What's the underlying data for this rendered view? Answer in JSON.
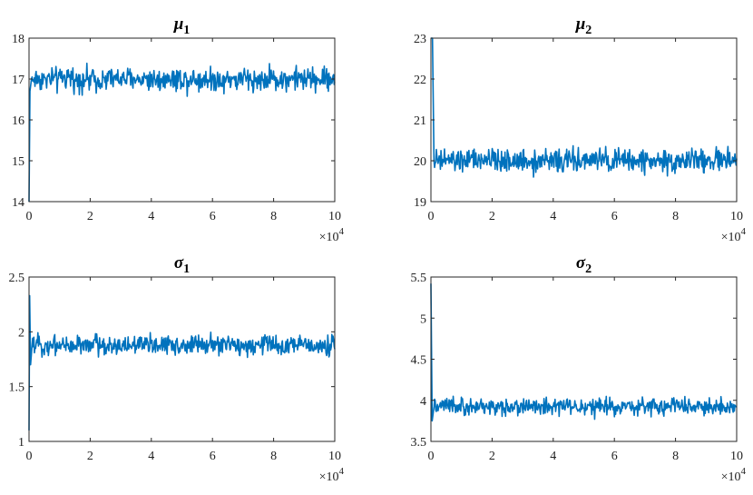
{
  "figure": {
    "series_color": "#0072BD",
    "axis_color": "#262626",
    "background": "#ffffff"
  },
  "chart_data": [
    {
      "type": "line",
      "title": "μ",
      "title_sub": "1",
      "x_multiplier_base": "×10",
      "x_multiplier_exp": "4",
      "xlim": [
        0,
        10
      ],
      "ylim": [
        14,
        18
      ],
      "xticks": [
        0,
        2,
        4,
        6,
        8,
        10
      ],
      "yticks": [
        14,
        15,
        16,
        17,
        18
      ],
      "grid": false,
      "series": [
        {
          "burn_in": [
            [
              0,
              14.0
            ],
            [
              0.03,
              16.7
            ],
            [
              0.08,
              17.0
            ]
          ],
          "equilibrium_mean": 17.0,
          "band_low": 16.6,
          "band_high": 17.45,
          "x_end": 10
        }
      ]
    },
    {
      "type": "line",
      "title": "μ",
      "title_sub": "2",
      "x_multiplier_base": "×10",
      "x_multiplier_exp": "4",
      "xlim": [
        0,
        10
      ],
      "ylim": [
        19,
        23
      ],
      "xticks": [
        0,
        2,
        4,
        6,
        8,
        10
      ],
      "yticks": [
        19,
        20,
        21,
        22,
        23
      ],
      "grid": false,
      "series": [
        {
          "burn_in": [
            [
              0,
              23.0
            ],
            [
              0.05,
              23.0
            ],
            [
              0.1,
              20.0
            ]
          ],
          "equilibrium_mean": 20.0,
          "band_low": 19.6,
          "band_high": 20.45,
          "x_end": 10
        }
      ]
    },
    {
      "type": "line",
      "title": "σ",
      "title_sub": "1",
      "x_multiplier_base": "×10",
      "x_multiplier_exp": "4",
      "xlim": [
        0,
        10
      ],
      "ylim": [
        1,
        2.5
      ],
      "xticks": [
        0,
        2,
        4,
        6,
        8,
        10
      ],
      "yticks": [
        1,
        1.5,
        2,
        2.5
      ],
      "ytick_labels": [
        "1",
        "1.5",
        "2",
        "2.5"
      ],
      "grid": false,
      "series": [
        {
          "burn_in": [
            [
              0,
              1.1
            ],
            [
              0.02,
              2.33
            ],
            [
              0.05,
              1.7
            ],
            [
              0.1,
              1.88
            ]
          ],
          "equilibrium_mean": 1.88,
          "band_low": 1.75,
          "band_high": 2.02,
          "x_end": 10
        }
      ]
    },
    {
      "type": "line",
      "title": "σ",
      "title_sub": "2",
      "x_multiplier_base": "×10",
      "x_multiplier_exp": "4",
      "xlim": [
        0,
        10
      ],
      "ylim": [
        3.5,
        5.5
      ],
      "xticks": [
        0,
        2,
        4,
        6,
        8,
        10
      ],
      "yticks": [
        3.5,
        4,
        4.5,
        5,
        5.5
      ],
      "ytick_labels": [
        "3.5",
        "4",
        "4.5",
        "5",
        "5.5"
      ],
      "grid": false,
      "series": [
        {
          "burn_in": [
            [
              0,
              5.42
            ],
            [
              0.04,
              3.75
            ],
            [
              0.1,
              3.92
            ]
          ],
          "equilibrium_mean": 3.92,
          "band_low": 3.78,
          "band_high": 4.08,
          "x_end": 10
        }
      ]
    }
  ]
}
